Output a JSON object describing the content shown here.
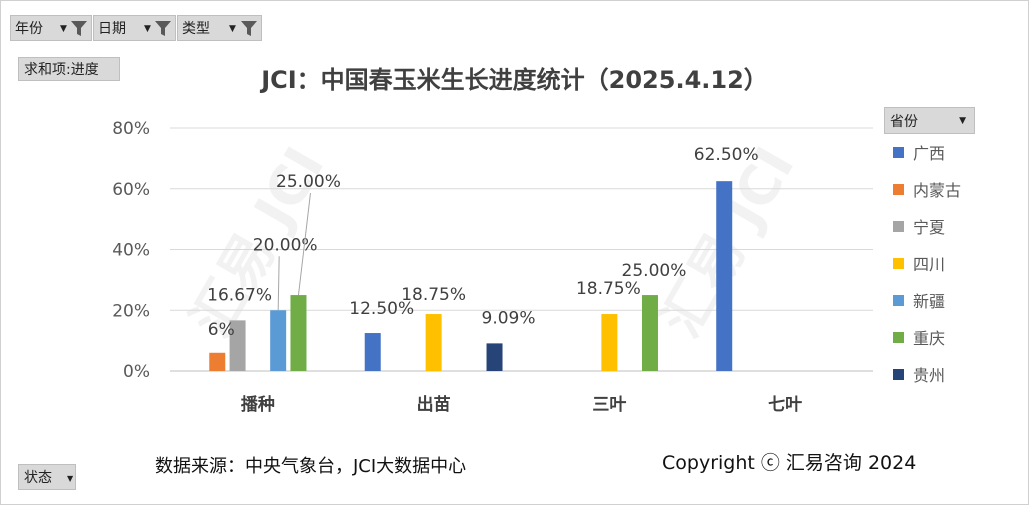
{
  "filters": [
    {
      "label": "年份"
    },
    {
      "label": "日期"
    },
    {
      "label": "类型"
    }
  ],
  "value_field": "求和项:进度",
  "status_field": "状态",
  "legend_header": "省份",
  "watermark_text": "汇易 JCI",
  "chart_data": {
    "type": "bar",
    "title": "JCI：中国春玉米生长进度统计（2025.4.12）",
    "categories": [
      "播种",
      "出苗",
      "三叶",
      "七叶"
    ],
    "series": [
      {
        "name": "广西",
        "color": "#4472c4",
        "values": [
          null,
          12.5,
          null,
          62.5
        ],
        "labels": [
          null,
          "12.50%",
          null,
          "62.50%"
        ]
      },
      {
        "name": "内蒙古",
        "color": "#ed7d31",
        "values": [
          6,
          null,
          null,
          null
        ],
        "labels": [
          "6%",
          null,
          null,
          null
        ]
      },
      {
        "name": "宁夏",
        "color": "#a5a5a5",
        "values": [
          16.67,
          null,
          null,
          null
        ],
        "labels": [
          "16.67%",
          null,
          null,
          null
        ]
      },
      {
        "name": "四川",
        "color": "#ffc000",
        "values": [
          null,
          18.75,
          18.75,
          null
        ],
        "labels": [
          null,
          "18.75%",
          "18.75%",
          null
        ]
      },
      {
        "name": "新疆",
        "color": "#5b9bd5",
        "values": [
          20,
          null,
          null,
          null
        ],
        "labels": [
          "20.00%",
          null,
          null,
          null
        ]
      },
      {
        "name": "重庆",
        "color": "#70ad47",
        "values": [
          25,
          null,
          25,
          null
        ],
        "labels": [
          "25.00%",
          null,
          "25.00%",
          null
        ]
      },
      {
        "name": "贵州",
        "color": "#264478",
        "values": [
          null,
          9.09,
          null,
          null
        ],
        "labels": [
          null,
          "9.09%",
          null,
          null
        ]
      }
    ],
    "y_ticks": [
      "0%",
      "20%",
      "40%",
      "60%",
      "80%"
    ],
    "ylim": [
      0,
      80
    ],
    "grid": true,
    "legend_position": "right"
  },
  "footer": {
    "source": "数据来源：中央气象台，JCI大数据中心",
    "copyright": "Copyright ⓒ 汇易咨询 2024"
  }
}
